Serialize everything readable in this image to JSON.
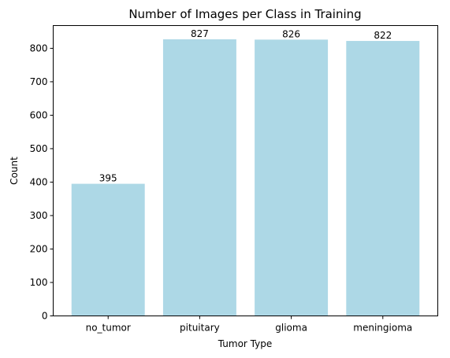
{
  "chart_data": {
    "type": "bar",
    "title": "Number of Images per Class in Training",
    "xlabel": "Tumor Type",
    "ylabel": "Count",
    "categories": [
      "no_tumor",
      "pituitary",
      "glioma",
      "meningioma"
    ],
    "values": [
      395,
      827,
      826,
      822
    ],
    "data_labels": [
      "395",
      "827",
      "826",
      "822"
    ],
    "yticks": [
      0,
      100,
      200,
      300,
      400,
      500,
      600,
      700,
      800
    ],
    "ylim": [
      0,
      868
    ],
    "grid": false,
    "bar_color": "#add8e6"
  }
}
